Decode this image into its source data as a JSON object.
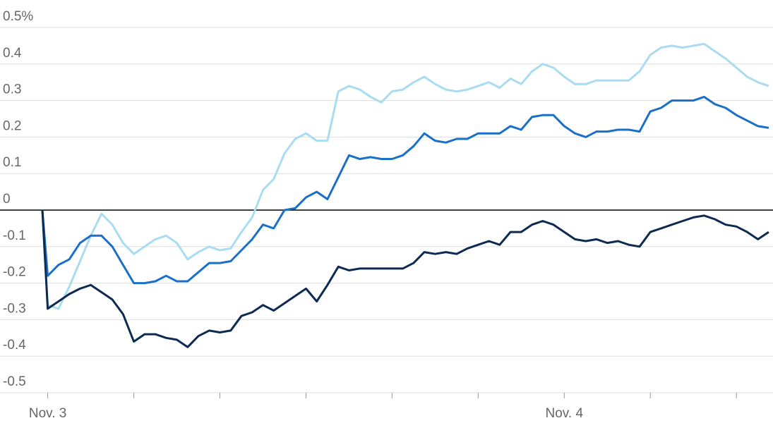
{
  "chart_data": {
    "type": "line",
    "x": [
      -0.25,
      0,
      0.5,
      1,
      1.5,
      2,
      2.5,
      3,
      3.5,
      4,
      4.5,
      5,
      5.5,
      6,
      6.5,
      7,
      7.5,
      8,
      8.5,
      9,
      9.5,
      10,
      10.5,
      11,
      11.5,
      12,
      12.5,
      13,
      13.5,
      14,
      14.5,
      15,
      15.5,
      16,
      16.5,
      17,
      17.5,
      18,
      18.5,
      19,
      19.5,
      20,
      20.5,
      21,
      21.5,
      22,
      22.5,
      23,
      23.5,
      24,
      24.5,
      25,
      25.5,
      26,
      26.5,
      27,
      27.5,
      28,
      28.5,
      29,
      29.5,
      30,
      30.5,
      31,
      31.5,
      32,
      32.5,
      33,
      33.5
    ],
    "series": [
      {
        "color": "#a9dcf0",
        "values": [
          0,
          -0.26,
          -0.27,
          -0.21,
          -0.14,
          -0.07,
          -0.01,
          -0.04,
          -0.09,
          -0.12,
          -0.1,
          -0.08,
          -0.07,
          -0.09,
          -0.135,
          -0.115,
          -0.1,
          -0.11,
          -0.105,
          -0.06,
          -0.02,
          0.055,
          0.085,
          0.155,
          0.195,
          0.21,
          0.19,
          0.19,
          0.325,
          0.34,
          0.33,
          0.31,
          0.295,
          0.325,
          0.33,
          0.35,
          0.365,
          0.345,
          0.33,
          0.325,
          0.33,
          0.34,
          0.35,
          0.335,
          0.36,
          0.345,
          0.38,
          0.4,
          0.39,
          0.365,
          0.345,
          0.345,
          0.355,
          0.355,
          0.355,
          0.355,
          0.38,
          0.425,
          0.445,
          0.45,
          0.445,
          0.45,
          0.455,
          0.435,
          0.415,
          0.39,
          0.365,
          0.35,
          0.34
        ]
      },
      {
        "color": "#1a6fc6",
        "values": [
          0,
          -0.18,
          -0.15,
          -0.135,
          -0.09,
          -0.07,
          -0.07,
          -0.1,
          -0.15,
          -0.2,
          -0.2,
          -0.195,
          -0.18,
          -0.195,
          -0.195,
          -0.17,
          -0.145,
          -0.145,
          -0.14,
          -0.11,
          -0.08,
          -0.04,
          -0.05,
          0,
          0.005,
          0.035,
          0.05,
          0.03,
          0.09,
          0.15,
          0.14,
          0.145,
          0.14,
          0.14,
          0.15,
          0.175,
          0.21,
          0.19,
          0.185,
          0.195,
          0.195,
          0.21,
          0.21,
          0.21,
          0.23,
          0.22,
          0.255,
          0.26,
          0.26,
          0.23,
          0.21,
          0.2,
          0.215,
          0.215,
          0.22,
          0.22,
          0.215,
          0.27,
          0.28,
          0.3,
          0.3,
          0.3,
          0.31,
          0.29,
          0.28,
          0.26,
          0.245,
          0.23,
          0.225
        ]
      },
      {
        "color": "#0d2a52",
        "values": [
          0,
          -0.27,
          -0.25,
          -0.23,
          -0.215,
          -0.205,
          -0.225,
          -0.245,
          -0.285,
          -0.36,
          -0.34,
          -0.34,
          -0.35,
          -0.355,
          -0.375,
          -0.345,
          -0.33,
          -0.335,
          -0.33,
          -0.29,
          -0.28,
          -0.26,
          -0.275,
          -0.255,
          -0.235,
          -0.215,
          -0.25,
          -0.205,
          -0.155,
          -0.165,
          -0.16,
          -0.16,
          -0.16,
          -0.16,
          -0.16,
          -0.145,
          -0.115,
          -0.12,
          -0.115,
          -0.12,
          -0.105,
          -0.095,
          -0.085,
          -0.095,
          -0.06,
          -0.06,
          -0.04,
          -0.03,
          -0.04,
          -0.06,
          -0.08,
          -0.085,
          -0.08,
          -0.09,
          -0.085,
          -0.095,
          -0.1,
          -0.06,
          -0.05,
          -0.04,
          -0.03,
          -0.02,
          -0.015,
          -0.025,
          -0.04,
          -0.045,
          -0.06,
          -0.08,
          -0.06
        ]
      }
    ],
    "xlim": [
      -0.25,
      33.7
    ],
    "xticks": [
      {
        "value": 0,
        "label": "Nov. 3"
      },
      {
        "value": 4,
        "label": null
      },
      {
        "value": 8,
        "label": null
      },
      {
        "value": 12,
        "label": null
      },
      {
        "value": 16,
        "label": null
      },
      {
        "value": 20,
        "label": null
      },
      {
        "value": 24,
        "label": "Nov. 4"
      },
      {
        "value": 28,
        "label": null
      },
      {
        "value": 32,
        "label": null
      }
    ],
    "ylim": [
      -0.5,
      0.5
    ],
    "yticks": [
      {
        "value": 0.5,
        "label": "0.5%"
      },
      0.4,
      0.3,
      0.2,
      0.1,
      0,
      -0.1,
      -0.2,
      -0.3,
      -0.4,
      -0.5
    ],
    "grid": true
  }
}
